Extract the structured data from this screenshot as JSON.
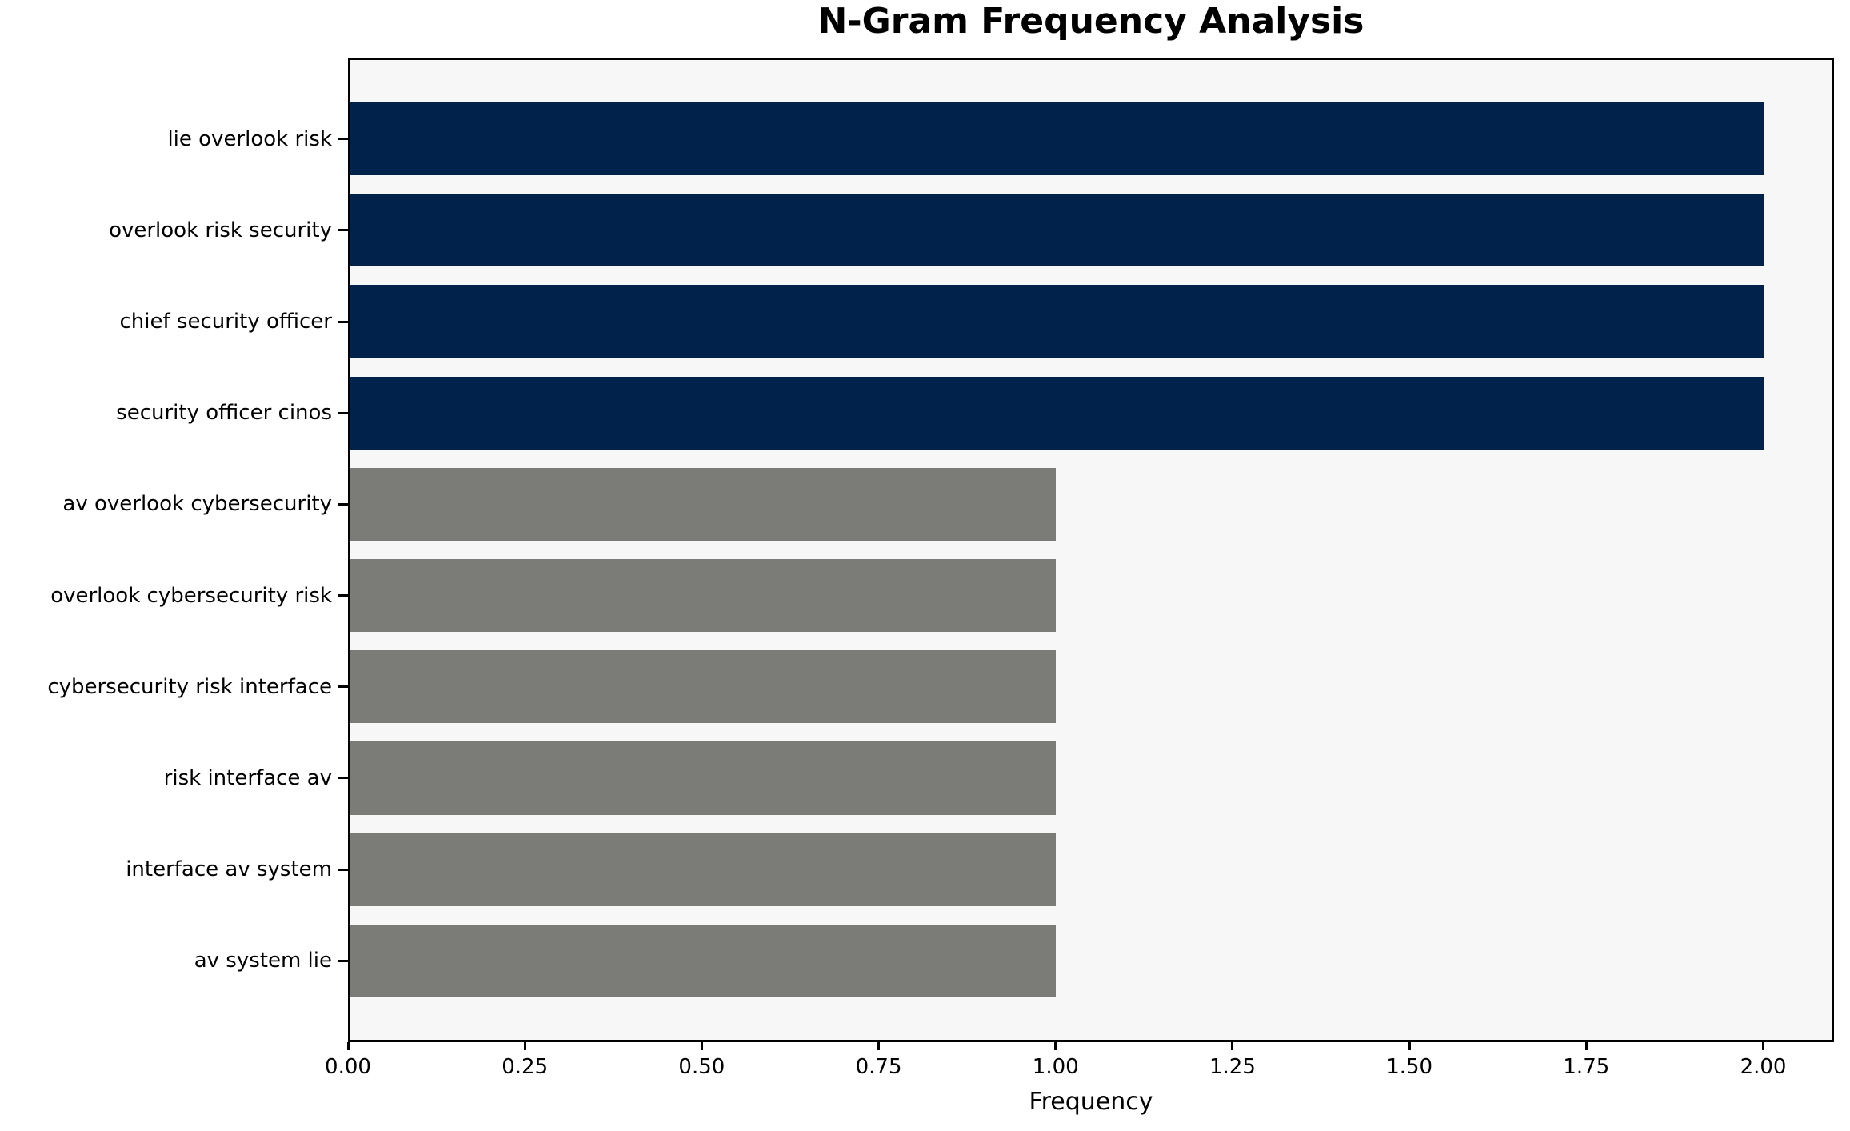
{
  "chart_data": {
    "type": "bar",
    "orientation": "horizontal",
    "title": "N-Gram Frequency Analysis",
    "xlabel": "Frequency",
    "ylabel": "",
    "categories": [
      "lie overlook risk",
      "overlook risk security",
      "chief security officer",
      "security officer cinos",
      "av overlook cybersecurity",
      "overlook cybersecurity risk",
      "cybersecurity risk interface",
      "risk interface av",
      "interface av system",
      "av system lie"
    ],
    "values": [
      2,
      2,
      2,
      2,
      1,
      1,
      1,
      1,
      1,
      1
    ],
    "bar_colors": [
      "#01224a",
      "#01224a",
      "#01224a",
      "#01224a",
      "#7b7b78",
      "#7b7b78",
      "#7b7b78",
      "#7b7b78",
      "#7b7b78",
      "#7b7b78"
    ],
    "xlim": [
      0,
      2.1
    ],
    "x_tick_labels": [
      "0.00",
      "0.25",
      "0.50",
      "0.75",
      "1.00",
      "1.25",
      "1.50",
      "1.75",
      "2.00"
    ],
    "grid": false,
    "legend": false,
    "colors": {
      "plot_background": "#f7f7f7",
      "figure_background": "#ffffff",
      "spine": "#000000",
      "tick": "#000000",
      "text": "#000000"
    }
  }
}
